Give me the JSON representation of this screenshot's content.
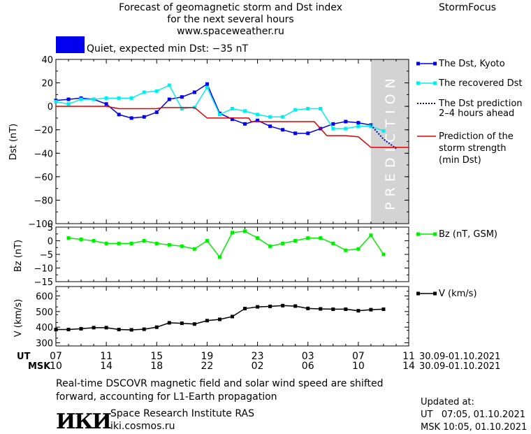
{
  "header": {
    "title_line1": "Forecast of geomagnetic storm and Dst index",
    "title_line2": "for the next several hours",
    "url": "www.spaceweather.ru",
    "brand": "StormFocus"
  },
  "status": {
    "text": "Quiet, expected min Dst: −35 nT",
    "color": "#0000ee"
  },
  "chart_data": [
    {
      "type": "line",
      "panel": "dst",
      "ylabel": "Dst (nT)",
      "ylim": [
        -100,
        40
      ],
      "yticks": [
        40,
        20,
        0,
        -20,
        -40,
        -60,
        -80,
        -100
      ],
      "xlim": [
        0,
        28
      ],
      "prediction_band": {
        "from": 25,
        "to": 28,
        "label": "PREDICTION",
        "color": "#d3d3d3"
      },
      "series": [
        {
          "name": "The Dst, Kyoto",
          "color": "#0000ee",
          "style": "solid-square",
          "x": [
            0,
            1,
            2,
            3,
            4,
            5,
            6,
            7,
            8,
            9,
            10,
            11,
            12,
            13,
            14,
            15,
            16,
            17,
            18,
            19,
            20,
            21,
            22,
            23,
            24,
            25
          ],
          "y": [
            5,
            6,
            7,
            6,
            2,
            -7,
            -10,
            -9,
            -5,
            6,
            8,
            12,
            19,
            -6,
            -11,
            -15,
            -12,
            -17,
            -20,
            -23,
            -23,
            -19,
            -15,
            -13,
            -14,
            -16
          ]
        },
        {
          "name": "The recovered Dst",
          "color": "#00eeee",
          "style": "solid-square",
          "x": [
            0,
            1,
            2,
            3,
            4,
            5,
            6,
            7,
            8,
            9,
            10,
            11,
            12,
            13,
            14,
            15,
            16,
            17,
            18,
            19,
            20,
            21,
            22,
            23,
            24,
            25,
            26
          ],
          "y": [
            4,
            2,
            6,
            6,
            7,
            7,
            7,
            12,
            13,
            18,
            -2,
            -1,
            16,
            -7,
            -2,
            -4,
            -7,
            -9,
            -9,
            -3,
            -2,
            -2,
            -19,
            -19,
            -17,
            -17,
            -21
          ]
        },
        {
          "name": "The Dst prediction 2–4 hours ahead",
          "color": "#0000aa",
          "style": "dotted",
          "x": [
            25,
            26,
            27
          ],
          "y": [
            -16,
            -28,
            -36
          ]
        },
        {
          "name": "Prediction of the storm strength (min Dst)",
          "color": "#dd0000",
          "style": "step",
          "x": [
            0,
            4,
            5,
            8,
            8.5,
            11,
            12,
            12.5,
            15.3,
            15.5,
            20.5,
            21.5,
            23,
            24,
            25,
            28
          ],
          "y": [
            0,
            0,
            -2,
            -2,
            -1,
            -1,
            -10,
            -10,
            -10,
            -13,
            -13,
            -25,
            -25,
            -26,
            -35,
            -35
          ]
        }
      ]
    },
    {
      "type": "line",
      "panel": "bz",
      "ylabel": "Bz (nT)",
      "ylim": [
        -15,
        5
      ],
      "yticks": [
        5,
        0,
        -5,
        -10,
        -15
      ],
      "xlim": [
        0,
        28
      ],
      "series": [
        {
          "name": "Bz (nT, GSM)",
          "color": "#00ee00",
          "style": "solid-square",
          "x": [
            1,
            2,
            3,
            4,
            5,
            6,
            7,
            8,
            9,
            10,
            11,
            12,
            13,
            14,
            15,
            16,
            17,
            18,
            19,
            20,
            21,
            22,
            23,
            24,
            25,
            26
          ],
          "y": [
            1,
            0.5,
            0,
            -1,
            -1,
            -1,
            0,
            -1,
            -1.5,
            -2,
            -3,
            0,
            -6,
            3,
            3.5,
            1,
            -2,
            -1,
            0,
            1,
            1,
            -1,
            -3.5,
            -3,
            2,
            -5
          ]
        }
      ]
    },
    {
      "type": "line",
      "panel": "v",
      "ylabel": "V (km/s)",
      "ylim": [
        280,
        660
      ],
      "yticks": [
        600,
        500,
        400,
        300
      ],
      "xlim": [
        0,
        28
      ],
      "series": [
        {
          "name": "V (km/s)",
          "color": "#000000",
          "style": "solid-square",
          "x": [
            0,
            1,
            2,
            3,
            4,
            5,
            6,
            7,
            8,
            9,
            10,
            11,
            12,
            13,
            14,
            15,
            16,
            17,
            18,
            19,
            20,
            21,
            22,
            23,
            24,
            25,
            26
          ],
          "y": [
            385,
            385,
            390,
            397,
            397,
            385,
            383,
            387,
            400,
            428,
            425,
            420,
            442,
            450,
            468,
            519,
            530,
            533,
            538,
            535,
            520,
            517,
            515,
            515,
            505,
            512,
            515
          ]
        }
      ]
    }
  ],
  "axes": {
    "x_positions": [
      0,
      4,
      8,
      12,
      16,
      20,
      24,
      28
    ],
    "ut_label": "UT",
    "msk_label": "MSK",
    "ut_ticks": [
      "07",
      "11",
      "15",
      "19",
      "23",
      "03",
      "07",
      "11"
    ],
    "msk_ticks": [
      "10",
      "14",
      "18",
      "22",
      "02",
      "06",
      "10",
      "14"
    ],
    "date_range_ut": "30.09-01.10.2021",
    "date_range_msk": "30.09-01.10.2021"
  },
  "legend": {
    "dst_kyoto": "The Dst, Kyoto",
    "recovered": "The recovered Dst",
    "prediction_line1": "The Dst prediction",
    "prediction_line2": "2–4 hours ahead",
    "strength_line1": "Prediction of the",
    "strength_line2": "storm strength",
    "strength_line3": "(min Dst)",
    "bz": "Bz (nT, GSM)",
    "v": "V (km/s)"
  },
  "footer": {
    "note_line1": "Real-time DSCOVR magnetic field and solar wind speed are shifted",
    "note_line2": "forward, accounting for L1-Earth propagation",
    "logo_text": "ИКИ",
    "institute": "Space Research Institute RAS",
    "site": "iki.cosmos.ru",
    "updated_label": "Updated at:",
    "updated_ut": "UT   07:05, 01.10.2021",
    "updated_msk": "MSK 10:05, 01.10.2021"
  }
}
